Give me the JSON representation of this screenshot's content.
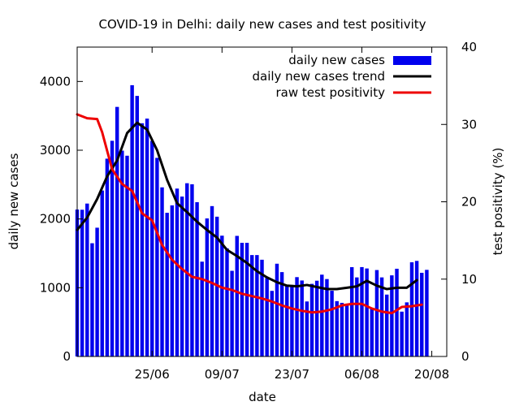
{
  "chart_data": {
    "type": "bar",
    "title": "COVID-19 in Delhi: daily new cases and test positivity",
    "xlabel": "date",
    "ylabel": "daily new cases",
    "y2label": "test positivity (%)",
    "ylim": [
      0,
      4500
    ],
    "y2lim": [
      0,
      40
    ],
    "y_ticks": [
      0,
      1000,
      2000,
      3000,
      4000
    ],
    "y2_ticks": [
      0,
      10,
      20,
      30,
      40
    ],
    "x_range": [
      "2020-06-10",
      "2020-08-23"
    ],
    "x_ticks": [
      {
        "date": "2020-06-25",
        "label": "25/06"
      },
      {
        "date": "2020-07-09",
        "label": "09/07"
      },
      {
        "date": "2020-07-23",
        "label": "23/07"
      },
      {
        "date": "2020-08-06",
        "label": "06/08"
      },
      {
        "date": "2020-08-20",
        "label": "20/08"
      }
    ],
    "grid": false,
    "legend_position": "top-right",
    "colors": {
      "bars": "#0000ee",
      "trend": "#000000",
      "positivity": "#ee0000"
    },
    "series": [
      {
        "name": "daily new cases",
        "kind": "bar",
        "axis": "left",
        "x": [
          "2020-06-10",
          "2020-06-11",
          "2020-06-12",
          "2020-06-13",
          "2020-06-14",
          "2020-06-15",
          "2020-06-16",
          "2020-06-17",
          "2020-06-18",
          "2020-06-19",
          "2020-06-20",
          "2020-06-21",
          "2020-06-22",
          "2020-06-23",
          "2020-06-24",
          "2020-06-25",
          "2020-06-26",
          "2020-06-27",
          "2020-06-28",
          "2020-06-29",
          "2020-06-30",
          "2020-07-01",
          "2020-07-02",
          "2020-07-03",
          "2020-07-04",
          "2020-07-05",
          "2020-07-06",
          "2020-07-07",
          "2020-07-08",
          "2020-07-09",
          "2020-07-10",
          "2020-07-11",
          "2020-07-12",
          "2020-07-13",
          "2020-07-14",
          "2020-07-15",
          "2020-07-16",
          "2020-07-17",
          "2020-07-18",
          "2020-07-19",
          "2020-07-20",
          "2020-07-21",
          "2020-07-22",
          "2020-07-23",
          "2020-07-24",
          "2020-07-25",
          "2020-07-26",
          "2020-07-27",
          "2020-07-28",
          "2020-07-29",
          "2020-07-30",
          "2020-07-31",
          "2020-08-01",
          "2020-08-02",
          "2020-08-03",
          "2020-08-04",
          "2020-08-05",
          "2020-08-06",
          "2020-08-07",
          "2020-08-08",
          "2020-08-09",
          "2020-08-10",
          "2020-08-11",
          "2020-08-12",
          "2020-08-13",
          "2020-08-14",
          "2020-08-15",
          "2020-08-16",
          "2020-08-17",
          "2020-08-18",
          "2020-08-19",
          "2020-08-20",
          "2020-08-21",
          "2020-08-22"
        ],
        "values": [
          2137,
          2134,
          2224,
          1647,
          1873,
          2414,
          2877,
          3137,
          3630,
          2994,
          2920,
          3946,
          3790,
          3392,
          3460,
          3137,
          2889,
          2460,
          2090,
          2198,
          2442,
          2326,
          2520,
          2505,
          2244,
          1379,
          2008,
          2187,
          2033,
          1757,
          1573,
          1246,
          1754,
          1653,
          1653,
          1475,
          1475,
          1407,
          1142,
          954,
          1349,
          1227,
          1037,
          1041,
          1154,
          1105,
          800,
          1056,
          1102,
          1190,
          1126,
          956,
          805,
          780,
          740,
          1299,
          1150,
          1300,
          1280,
          700,
          1257,
          1150,
          900,
          1180,
          1276,
          652,
          787,
          1370,
          1390,
          1217,
          1260,
          null,
          null,
          null
        ]
      },
      {
        "name": "daily new cases trend",
        "kind": "line",
        "axis": "left",
        "x": [
          "2020-06-10",
          "2020-06-12",
          "2020-06-14",
          "2020-06-16",
          "2020-06-18",
          "2020-06-20",
          "2020-06-22",
          "2020-06-24",
          "2020-06-26",
          "2020-06-28",
          "2020-06-30",
          "2020-07-02",
          "2020-07-04",
          "2020-07-06",
          "2020-07-08",
          "2020-07-10",
          "2020-07-12",
          "2020-07-14",
          "2020-07-16",
          "2020-07-18",
          "2020-07-20",
          "2020-07-22",
          "2020-07-24",
          "2020-07-26",
          "2020-07-28",
          "2020-07-30",
          "2020-08-01",
          "2020-08-03",
          "2020-08-05",
          "2020-08-07",
          "2020-08-09",
          "2020-08-11",
          "2020-08-13",
          "2020-08-15",
          "2020-08-17"
        ],
        "values": [
          1840,
          2020,
          2290,
          2620,
          2850,
          3250,
          3400,
          3300,
          3000,
          2570,
          2230,
          2100,
          1960,
          1840,
          1730,
          1550,
          1460,
          1360,
          1240,
          1150,
          1080,
          1030,
          1020,
          1040,
          1010,
          980,
          980,
          1000,
          1020,
          1100,
          1030,
          980,
          1000,
          1000,
          1110
        ]
      },
      {
        "name": "raw test positivity",
        "kind": "line",
        "axis": "right",
        "x": [
          "2020-06-10",
          "2020-06-12",
          "2020-06-14",
          "2020-06-15",
          "2020-06-17",
          "2020-06-19",
          "2020-06-21",
          "2020-06-23",
          "2020-06-25",
          "2020-06-27",
          "2020-06-29",
          "2020-07-01",
          "2020-07-03",
          "2020-07-05",
          "2020-07-07",
          "2020-07-09",
          "2020-07-11",
          "2020-07-13",
          "2020-07-15",
          "2020-07-17",
          "2020-07-19",
          "2020-07-21",
          "2020-07-23",
          "2020-07-25",
          "2020-07-27",
          "2020-07-29",
          "2020-07-31",
          "2020-08-02",
          "2020-08-04",
          "2020-08-06",
          "2020-08-08",
          "2020-08-10",
          "2020-08-12",
          "2020-08-14",
          "2020-08-16",
          "2020-08-18"
        ],
        "values": [
          31.3,
          30.8,
          30.7,
          29.0,
          24.2,
          22.3,
          21.4,
          18.5,
          17.6,
          14.4,
          12.5,
          11.3,
          10.3,
          10.0,
          9.5,
          8.9,
          8.6,
          8.1,
          7.8,
          7.5,
          7.1,
          6.6,
          6.2,
          5.9,
          5.7,
          5.8,
          6.1,
          6.6,
          6.8,
          6.8,
          6.2,
          5.8,
          5.6,
          6.4,
          6.5,
          6.7
        ]
      }
    ]
  }
}
